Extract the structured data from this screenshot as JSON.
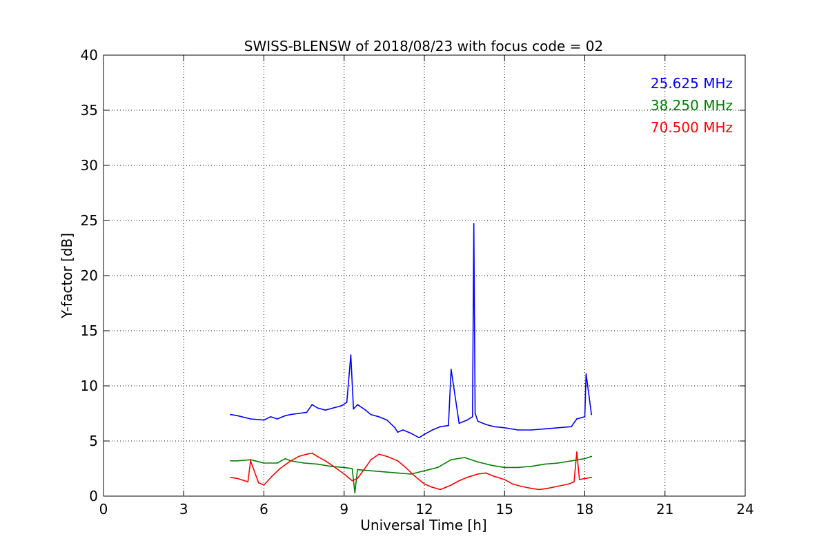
{
  "chart_data": {
    "type": "line",
    "title": "SWISS-BLENSW of 2018/08/23 with focus code = 02",
    "xlabel": "Universal Time [h]",
    "ylabel": "Y-factor [dB]",
    "xlim": [
      0,
      24
    ],
    "ylim": [
      0,
      40
    ],
    "xticks": [
      0,
      3,
      6,
      9,
      12,
      15,
      18,
      21,
      24
    ],
    "yticks": [
      0,
      5,
      10,
      15,
      20,
      25,
      30,
      35,
      40
    ],
    "grid": true,
    "legend_position": "top-right",
    "series": [
      {
        "name": "25.625 MHz",
        "color": "#0000ff",
        "x": [
          4.75,
          5.0,
          5.5,
          6.0,
          6.25,
          6.5,
          6.8,
          7.0,
          7.3,
          7.6,
          7.8,
          8.0,
          8.3,
          8.6,
          8.9,
          9.1,
          9.25,
          9.35,
          9.5,
          9.8,
          10.0,
          10.3,
          10.6,
          10.9,
          11.0,
          11.2,
          11.5,
          11.8,
          12.0,
          12.3,
          12.6,
          12.9,
          13.0,
          13.3,
          13.6,
          13.8,
          13.85,
          13.9,
          14.0,
          14.3,
          14.6,
          15.0,
          15.5,
          16.0,
          16.5,
          17.0,
          17.5,
          17.7,
          18.0,
          18.05,
          18.25
        ],
        "y": [
          7.4,
          7.3,
          7.0,
          6.9,
          7.2,
          7.0,
          7.3,
          7.4,
          7.5,
          7.6,
          8.3,
          8.0,
          7.8,
          8.0,
          8.2,
          8.5,
          12.8,
          7.9,
          8.3,
          7.8,
          7.4,
          7.2,
          6.9,
          6.2,
          5.8,
          6.0,
          5.7,
          5.3,
          5.6,
          6.0,
          6.3,
          6.4,
          11.5,
          6.6,
          6.9,
          7.2,
          24.7,
          7.5,
          6.8,
          6.5,
          6.3,
          6.2,
          6.0,
          6.0,
          6.1,
          6.2,
          6.3,
          7.0,
          7.2,
          11.1,
          7.4
        ]
      },
      {
        "name": "38.250 MHz",
        "color": "#008000",
        "x": [
          4.75,
          5.0,
          5.5,
          6.0,
          6.5,
          6.8,
          7.0,
          7.5,
          8.0,
          8.5,
          9.0,
          9.3,
          9.4,
          9.5,
          10.0,
          10.5,
          11.0,
          11.5,
          12.0,
          12.5,
          13.0,
          13.5,
          14.0,
          14.5,
          15.0,
          15.5,
          16.0,
          16.5,
          17.0,
          17.5,
          18.0,
          18.25
        ],
        "y": [
          3.2,
          3.2,
          3.3,
          3.0,
          3.0,
          3.4,
          3.2,
          3.0,
          2.9,
          2.7,
          2.6,
          2.5,
          0.3,
          2.4,
          2.3,
          2.2,
          2.1,
          2.0,
          2.3,
          2.6,
          3.3,
          3.5,
          3.1,
          2.8,
          2.6,
          2.6,
          2.7,
          2.9,
          3.0,
          3.2,
          3.4,
          3.6
        ]
      },
      {
        "name": "70.500 MHz",
        "color": "#ff0000",
        "x": [
          4.75,
          5.0,
          5.4,
          5.5,
          5.8,
          6.0,
          6.3,
          6.6,
          7.0,
          7.3,
          7.6,
          7.8,
          8.0,
          8.3,
          8.6,
          9.0,
          9.3,
          9.5,
          9.8,
          10.0,
          10.3,
          10.6,
          11.0,
          11.3,
          11.6,
          12.0,
          12.3,
          12.6,
          12.8,
          13.0,
          13.3,
          13.6,
          14.0,
          14.3,
          14.6,
          15.0,
          15.3,
          15.6,
          16.0,
          16.3,
          16.6,
          17.0,
          17.4,
          17.6,
          17.7,
          17.8,
          18.0,
          18.25
        ],
        "y": [
          1.7,
          1.6,
          1.3,
          3.2,
          1.2,
          1.0,
          1.8,
          2.5,
          3.2,
          3.6,
          3.8,
          3.9,
          3.6,
          3.2,
          2.7,
          2.0,
          1.4,
          1.6,
          2.6,
          3.3,
          3.8,
          3.6,
          3.2,
          2.6,
          1.9,
          1.1,
          0.8,
          0.6,
          0.8,
          1.0,
          1.4,
          1.7,
          2.0,
          2.1,
          1.8,
          1.5,
          1.1,
          0.9,
          0.7,
          0.6,
          0.7,
          0.9,
          1.1,
          1.3,
          4.0,
          1.5,
          1.6,
          1.7
        ]
      }
    ]
  }
}
